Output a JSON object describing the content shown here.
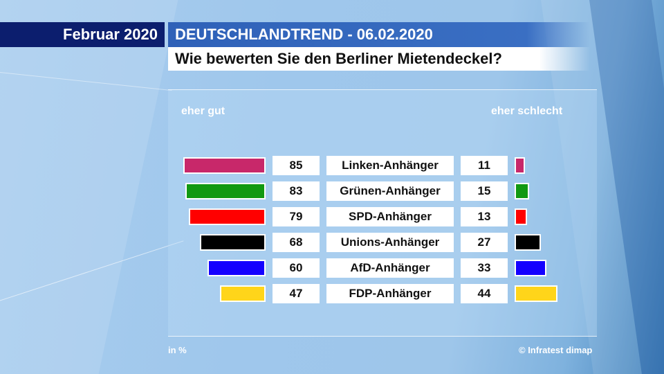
{
  "header": {
    "date": "Februar 2020",
    "title": "DEUTSCHLANDTREND - 06.02.2020",
    "question": "Wie bewerten Sie den Berliner Mietendeckel?"
  },
  "labels": {
    "left": "eher gut",
    "right": "eher schlecht"
  },
  "footer": {
    "unit": "in %",
    "source": "© Infratest dimap"
  },
  "chart_data": {
    "type": "bar",
    "title": "Wie bewerten Sie den Berliner Mietendeckel?",
    "unit": "in %",
    "categories": [
      "Linken-Anhänger",
      "Grünen-Anhänger",
      "SPD-Anhänger",
      "Unions-Anhänger",
      "AfD-Anhänger",
      "FDP-Anhänger"
    ],
    "series": [
      {
        "name": "eher gut",
        "values": [
          85,
          83,
          79,
          68,
          60,
          47
        ]
      },
      {
        "name": "eher schlecht",
        "values": [
          11,
          15,
          13,
          27,
          33,
          44
        ]
      }
    ],
    "colors": [
      "#c8286a",
      "#119911",
      "#ff0000",
      "#000000",
      "#1400ff",
      "#ffd51a"
    ]
  }
}
